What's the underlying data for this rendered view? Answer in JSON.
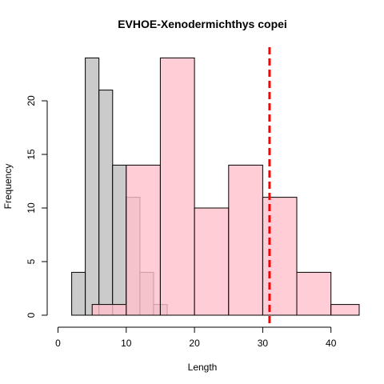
{
  "chart_data": {
    "type": "bar",
    "title": "EVHOE-Xenodermichthys copei",
    "xlabel": "Length",
    "ylabel": "Frequency",
    "xlim": [
      0,
      44
    ],
    "ylim": [
      0,
      24
    ],
    "x_ticks": [
      0,
      10,
      20,
      30,
      40
    ],
    "y_ticks": [
      0,
      5,
      10,
      15,
      20
    ],
    "grid": false,
    "reference_line": {
      "x": 31,
      "color": "#ff0000",
      "style": "dashed"
    },
    "series": [
      {
        "fill": "#bebebe",
        "fill_opacity": 0.8,
        "bins": [
          {
            "x0": 2,
            "x1": 4,
            "count": 4
          },
          {
            "x0": 4,
            "x1": 6,
            "count": 24
          },
          {
            "x0": 6,
            "x1": 8,
            "count": 21
          },
          {
            "x0": 8,
            "x1": 10,
            "count": 14
          },
          {
            "x0": 10,
            "x1": 12,
            "count": 11
          },
          {
            "x0": 12,
            "x1": 14,
            "count": 4
          },
          {
            "x0": 14,
            "x1": 16,
            "count": 1
          }
        ]
      },
      {
        "fill": "#ffc0cb",
        "fill_opacity": 0.8,
        "bins": [
          {
            "x0": 5,
            "x1": 10,
            "count": 1
          },
          {
            "x0": 10,
            "x1": 15,
            "count": 14
          },
          {
            "x0": 15,
            "x1": 20,
            "count": 24
          },
          {
            "x0": 20,
            "x1": 25,
            "count": 10
          },
          {
            "x0": 25,
            "x1": 30,
            "count": 14
          },
          {
            "x0": 30,
            "x1": 35,
            "count": 11
          },
          {
            "x0": 35,
            "x1": 40,
            "count": 4
          },
          {
            "x0": 40,
            "x1": 45,
            "count": 1
          }
        ]
      }
    ]
  }
}
